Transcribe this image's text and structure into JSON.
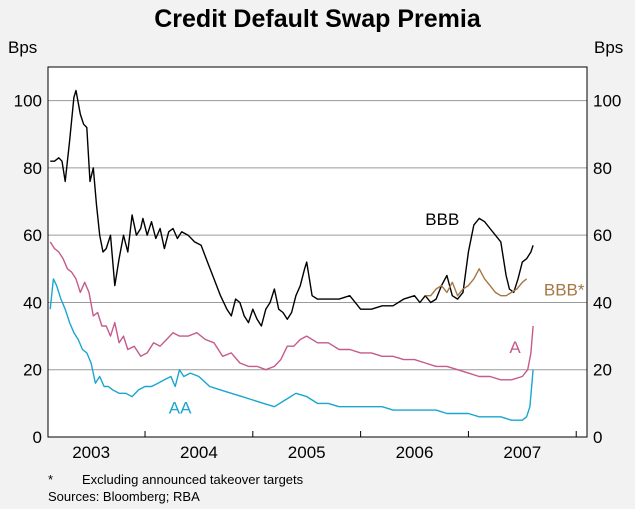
{
  "chart_data": {
    "type": "line",
    "title": "Credit Default Swap Premia",
    "ylabel_left": "Bps",
    "ylabel_right": "Bps",
    "ylim": [
      0,
      110
    ],
    "xlim": [
      2002.6,
      2007.6
    ],
    "yticks": [
      0,
      20,
      40,
      60,
      80,
      100
    ],
    "ytick_labels": [
      "0",
      "20",
      "40",
      "60",
      "80",
      "100"
    ],
    "year_labels": [
      "2003",
      "2004",
      "2005",
      "2006",
      "2007"
    ],
    "year_positions": [
      2003.0,
      2004.0,
      2005.0,
      2006.0,
      2007.0
    ],
    "year_boundaries": [
      2003.5,
      2004.5,
      2005.5,
      2006.5,
      2007.5
    ],
    "grid": true,
    "series": [
      {
        "name": "BBB",
        "label": "BBB",
        "color": "#000000",
        "label_pos": [
          2006.1,
          63
        ],
        "x": [
          2002.62,
          2002.66,
          2002.7,
          2002.73,
          2002.76,
          2002.8,
          2002.84,
          2002.86,
          2002.9,
          2002.93,
          2002.96,
          2002.99,
          2003.02,
          2003.05,
          2003.08,
          2003.11,
          2003.14,
          2003.18,
          2003.22,
          2003.26,
          2003.3,
          2003.34,
          2003.38,
          2003.42,
          2003.46,
          2003.48,
          2003.52,
          2003.56,
          2003.6,
          2003.64,
          2003.68,
          2003.72,
          2003.76,
          2003.8,
          2003.84,
          2003.9,
          2003.96,
          2004.02,
          2004.08,
          2004.14,
          2004.2,
          2004.26,
          2004.3,
          2004.34,
          2004.38,
          2004.42,
          2004.46,
          2004.5,
          2004.54,
          2004.58,
          2004.62,
          2004.66,
          2004.7,
          2004.74,
          2004.78,
          2004.82,
          2004.86,
          2004.9,
          2004.94,
          2004.98,
          2005.0,
          2005.05,
          2005.1,
          2005.2,
          2005.3,
          2005.4,
          2005.5,
          2005.6,
          2005.7,
          2005.8,
          2005.9,
          2006.0,
          2006.05,
          2006.1,
          2006.15,
          2006.2,
          2006.25,
          2006.3,
          2006.35,
          2006.4,
          2006.45,
          2006.5,
          2006.55,
          2006.6,
          2006.65,
          2006.7,
          2006.75,
          2006.8,
          2006.85,
          2006.88,
          2006.92,
          2006.96,
          2007.0,
          2007.04,
          2007.08,
          2007.1
        ],
        "y": [
          82,
          82,
          83,
          82,
          76,
          88,
          101,
          103,
          96,
          93,
          92,
          76,
          80,
          69,
          60,
          55,
          56,
          60,
          45,
          53,
          60,
          55,
          66,
          60,
          62,
          65,
          60,
          64,
          59,
          62,
          56,
          61,
          62,
          59,
          61,
          60,
          58,
          57,
          52,
          47,
          42,
          38,
          36,
          41,
          40,
          36,
          34,
          38,
          35,
          33,
          38,
          40,
          44,
          38,
          37,
          35,
          37,
          42,
          45,
          50,
          52,
          42,
          41,
          41,
          41,
          42,
          38,
          38,
          39,
          39,
          41,
          42,
          40,
          42,
          40,
          41,
          45,
          48,
          42,
          41,
          43,
          55,
          63,
          65,
          64,
          62,
          60,
          58,
          48,
          44,
          43,
          47,
          52,
          53,
          55,
          57
        ]
      },
      {
        "name": "BBB*",
        "label": "BBB*",
        "color": "#a67746",
        "label_pos": [
          2007.2,
          42
        ],
        "x": [
          2006.1,
          2006.15,
          2006.2,
          2006.25,
          2006.3,
          2006.35,
          2006.4,
          2006.45,
          2006.5,
          2006.55,
          2006.6,
          2006.65,
          2006.7,
          2006.75,
          2006.8,
          2006.85,
          2006.9,
          2006.95,
          2007.0,
          2007.04
        ],
        "y": [
          42,
          42,
          44,
          45,
          43,
          46,
          42,
          44,
          45,
          47,
          50,
          47,
          45,
          43,
          42,
          42,
          43,
          44,
          46,
          47
        ]
      },
      {
        "name": "A",
        "label": "A",
        "color": "#c55a8b",
        "label_pos": [
          2006.88,
          25
        ],
        "x": [
          2002.62,
          2002.66,
          2002.7,
          2002.74,
          2002.78,
          2002.82,
          2002.86,
          2002.9,
          2002.94,
          2002.98,
          2003.02,
          2003.06,
          2003.1,
          2003.14,
          2003.18,
          2003.22,
          2003.26,
          2003.3,
          2003.34,
          2003.4,
          2003.46,
          2003.52,
          2003.58,
          2003.64,
          2003.7,
          2003.76,
          2003.82,
          2003.9,
          2003.98,
          2004.06,
          2004.14,
          2004.22,
          2004.3,
          2004.38,
          2004.46,
          2004.54,
          2004.62,
          2004.7,
          2004.76,
          2004.82,
          2004.88,
          2004.94,
          2005.0,
          2005.1,
          2005.2,
          2005.3,
          2005.4,
          2005.5,
          2005.6,
          2005.7,
          2005.8,
          2005.9,
          2006.0,
          2006.1,
          2006.2,
          2006.3,
          2006.4,
          2006.5,
          2006.6,
          2006.7,
          2006.8,
          2006.9,
          2007.0,
          2007.05,
          2007.08,
          2007.1
        ],
        "y": [
          58,
          56,
          55,
          53,
          50,
          49,
          47,
          43,
          46,
          43,
          36,
          37,
          33,
          33,
          30,
          34,
          28,
          30,
          26,
          27,
          24,
          25,
          28,
          27,
          29,
          31,
          30,
          30,
          31,
          29,
          28,
          24,
          25,
          22,
          21,
          21,
          20,
          21,
          23,
          27,
          27,
          29,
          30,
          28,
          28,
          26,
          26,
          25,
          25,
          24,
          24,
          23,
          23,
          22,
          21,
          21,
          20,
          19,
          18,
          18,
          17,
          17,
          18,
          20,
          25,
          33
        ]
      },
      {
        "name": "AA",
        "label": "AA",
        "color": "#1aa6d0",
        "label_pos": [
          2003.72,
          7
        ],
        "x": [
          2002.62,
          2002.65,
          2002.68,
          2002.72,
          2002.76,
          2002.8,
          2002.84,
          2002.88,
          2002.92,
          2002.96,
          2003.0,
          2003.04,
          2003.08,
          2003.12,
          2003.16,
          2003.2,
          2003.26,
          2003.32,
          2003.38,
          2003.44,
          2003.5,
          2003.56,
          2003.62,
          2003.68,
          2003.74,
          2003.78,
          2003.82,
          2003.86,
          2003.92,
          2004.0,
          2004.1,
          2004.2,
          2004.3,
          2004.4,
          2004.5,
          2004.6,
          2004.7,
          2004.8,
          2004.9,
          2005.0,
          2005.1,
          2005.2,
          2005.3,
          2005.4,
          2005.5,
          2005.6,
          2005.7,
          2005.8,
          2005.9,
          2006.0,
          2006.1,
          2006.2,
          2006.3,
          2006.4,
          2006.5,
          2006.6,
          2006.7,
          2006.8,
          2006.9,
          2006.95,
          2007.0,
          2007.04,
          2007.07,
          2007.1
        ],
        "y": [
          38,
          47,
          45,
          41,
          38,
          34,
          31,
          29,
          26,
          25,
          22,
          16,
          18,
          15,
          15,
          14,
          13,
          13,
          12,
          14,
          15,
          15,
          16,
          17,
          18,
          15,
          20,
          18,
          19,
          18,
          15,
          14,
          13,
          12,
          11,
          10,
          9,
          11,
          13,
          12,
          10,
          10,
          9,
          9,
          9,
          9,
          9,
          8,
          8,
          8,
          8,
          8,
          7,
          7,
          7,
          6,
          6,
          6,
          5,
          5,
          5,
          6,
          9,
          20
        ]
      }
    ],
    "footnotes": {
      "star": "*",
      "note": "Excluding announced takeover targets",
      "sources": "Sources: Bloomberg; RBA"
    }
  }
}
